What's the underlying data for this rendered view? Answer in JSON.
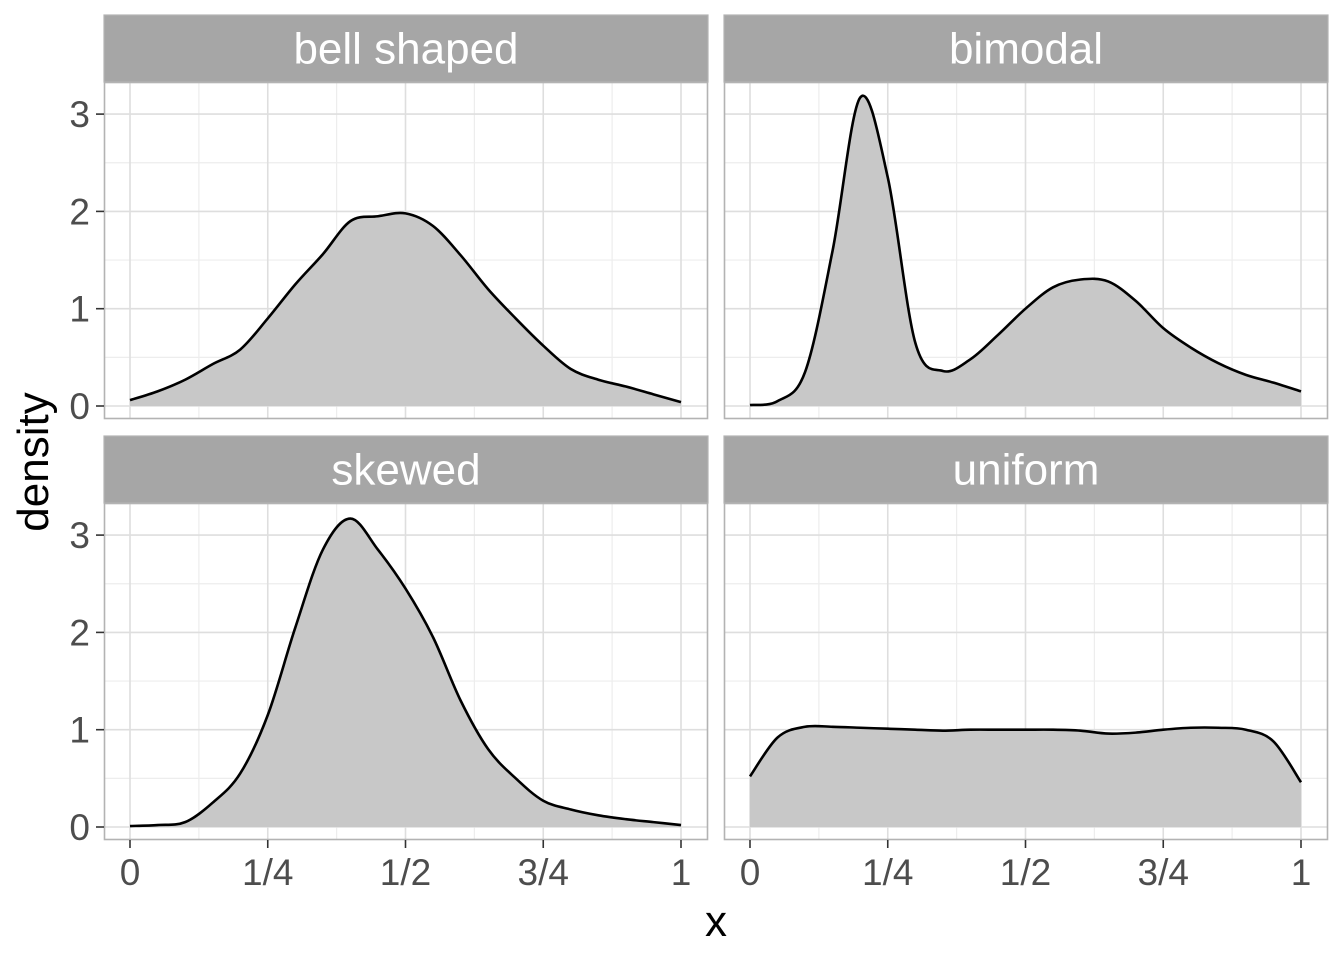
{
  "chart_data": {
    "type": "area",
    "xlabel": "x",
    "ylabel": "density",
    "xlim": [
      0,
      1
    ],
    "ylim": [
      0,
      3.3
    ],
    "x_ticks": [
      0,
      0.25,
      0.5,
      0.75,
      1
    ],
    "x_tick_labels": [
      "0",
      "1/4",
      "1/2",
      "3/4",
      "1"
    ],
    "y_ticks": [
      0,
      1,
      2,
      3
    ],
    "y_tick_labels": [
      "0",
      "1",
      "2",
      "3"
    ],
    "grid": true,
    "panels": [
      {
        "name": "bell shaped",
        "x": [
          0,
          0.05,
          0.1,
          0.15,
          0.2,
          0.25,
          0.3,
          0.35,
          0.4,
          0.45,
          0.5,
          0.55,
          0.6,
          0.65,
          0.7,
          0.75,
          0.8,
          0.85,
          0.9,
          0.95,
          1
        ],
        "y": [
          0.06,
          0.15,
          0.27,
          0.43,
          0.58,
          0.9,
          1.25,
          1.56,
          1.9,
          1.95,
          1.98,
          1.85,
          1.55,
          1.2,
          0.9,
          0.62,
          0.38,
          0.27,
          0.2,
          0.12,
          0.04
        ]
      },
      {
        "name": "bimodal",
        "x": [
          0,
          0.05,
          0.1,
          0.15,
          0.2,
          0.25,
          0.3,
          0.35,
          0.4,
          0.45,
          0.5,
          0.55,
          0.6,
          0.65,
          0.7,
          0.75,
          0.8,
          0.85,
          0.9,
          0.95,
          1
        ],
        "y": [
          0.01,
          0.05,
          0.35,
          1.6,
          3.17,
          2.35,
          0.65,
          0.36,
          0.48,
          0.73,
          1.0,
          1.22,
          1.3,
          1.28,
          1.08,
          0.8,
          0.6,
          0.44,
          0.32,
          0.24,
          0.15
        ]
      },
      {
        "name": "skewed",
        "x": [
          0,
          0.05,
          0.1,
          0.15,
          0.2,
          0.25,
          0.3,
          0.35,
          0.4,
          0.45,
          0.5,
          0.55,
          0.6,
          0.65,
          0.7,
          0.75,
          0.8,
          0.85,
          0.9,
          0.95,
          1
        ],
        "y": [
          0.01,
          0.02,
          0.05,
          0.25,
          0.55,
          1.15,
          2.05,
          2.85,
          3.17,
          2.85,
          2.45,
          1.95,
          1.3,
          0.8,
          0.5,
          0.27,
          0.18,
          0.12,
          0.08,
          0.05,
          0.02
        ]
      },
      {
        "name": "uniform",
        "x": [
          0,
          0.05,
          0.1,
          0.15,
          0.2,
          0.25,
          0.3,
          0.35,
          0.4,
          0.45,
          0.5,
          0.55,
          0.6,
          0.65,
          0.7,
          0.75,
          0.8,
          0.85,
          0.9,
          0.95,
          1
        ],
        "y": [
          0.52,
          0.92,
          1.03,
          1.03,
          1.02,
          1.01,
          1.0,
          0.99,
          1.0,
          1.0,
          1.0,
          1.0,
          0.99,
          0.96,
          0.97,
          1.0,
          1.02,
          1.02,
          1.0,
          0.88,
          0.46
        ]
      }
    ]
  },
  "colors": {
    "fill": "#c8c8c8",
    "line": "#000000",
    "strip_bg": "#a6a6a6",
    "strip_text": "#ffffff",
    "grid_major": "#dedede",
    "grid_minor": "#ededed",
    "panel_border": "#b3b3b3",
    "tick_text": "#4d4d4d"
  }
}
